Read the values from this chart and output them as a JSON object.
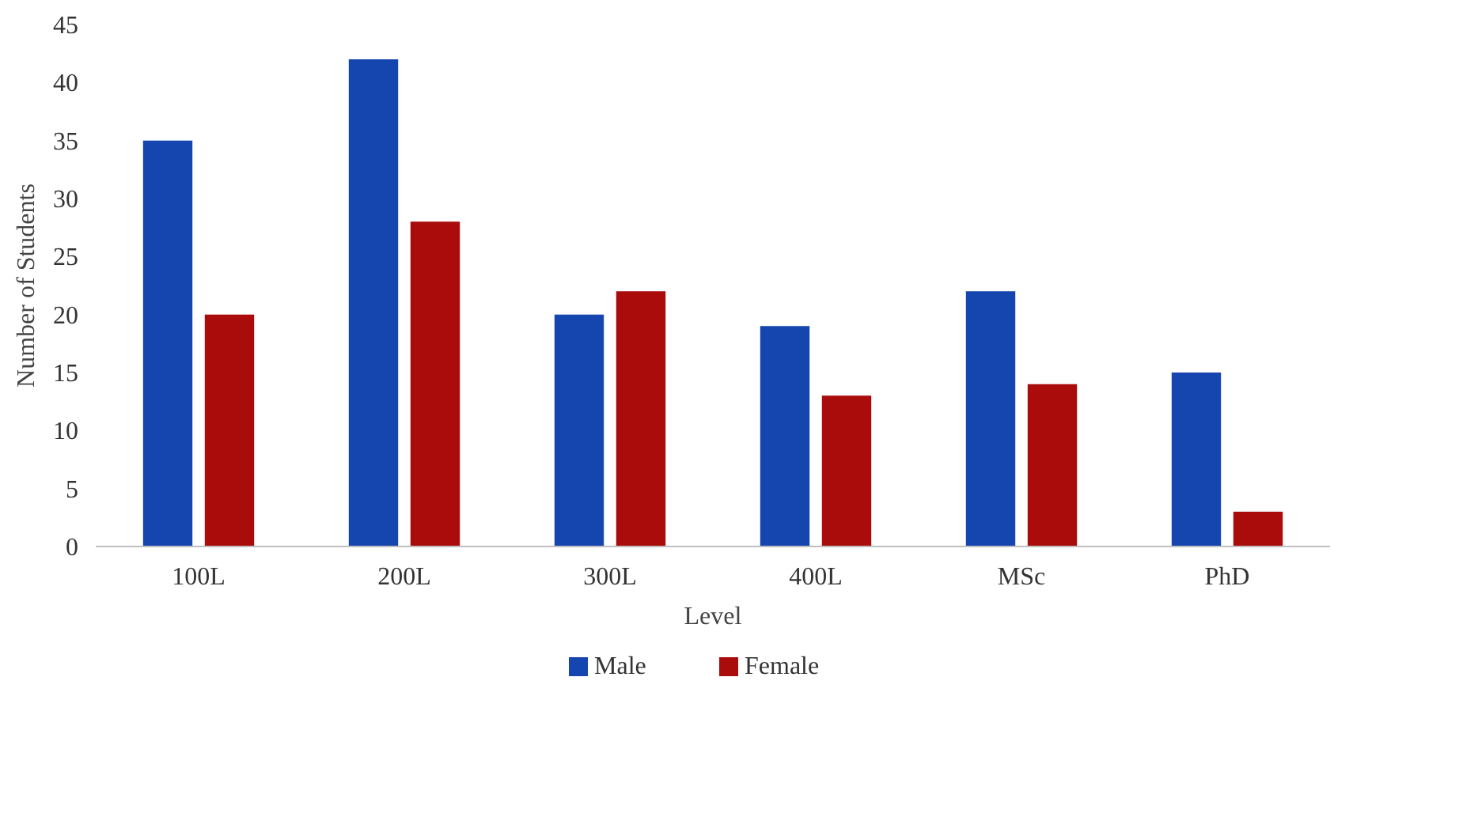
{
  "chart_data": {
    "type": "bar",
    "xlabel": "Level",
    "ylabel": "Number of Students",
    "categories": [
      "100L",
      "200L",
      "300L",
      "400L",
      "MSc",
      "PhD"
    ],
    "series": [
      {
        "name": "Male",
        "color": "#1546b0",
        "values": [
          35,
          42,
          20,
          19,
          22,
          15
        ]
      },
      {
        "name": "Female",
        "color": "#aa0c0c",
        "values": [
          20,
          28,
          22,
          13,
          14,
          3
        ]
      }
    ],
    "ylim": [
      0,
      45
    ],
    "yticks": [
      0,
      5,
      10,
      15,
      20,
      25,
      30,
      35,
      40,
      45
    ],
    "grid": false,
    "legend": "bottom"
  }
}
